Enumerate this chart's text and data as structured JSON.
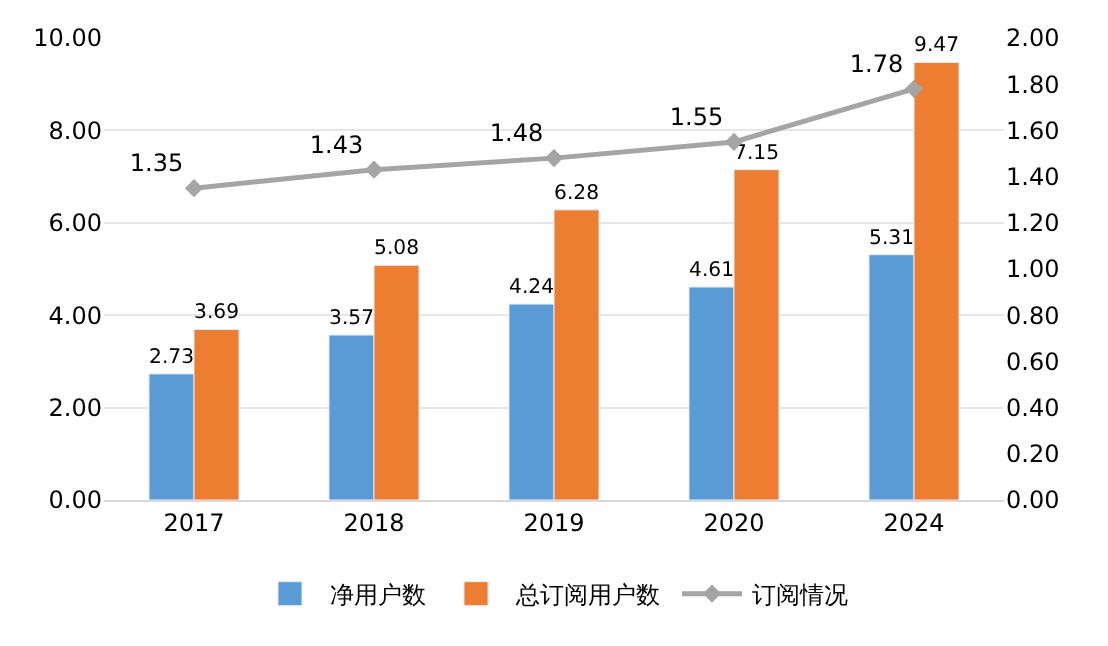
{
  "chart_data": {
    "type": "bar",
    "categories": [
      "2017",
      "2018",
      "2019",
      "2020",
      "2024"
    ],
    "series": [
      {
        "name": "净用户数",
        "color": "#5b9bd5",
        "values": [
          2.73,
          3.57,
          4.24,
          4.61,
          5.31
        ]
      },
      {
        "name": "总订阅用户数",
        "color": "#ed7d31",
        "values": [
          3.69,
          5.08,
          6.28,
          7.15,
          9.47
        ]
      },
      {
        "name": "订阅情况",
        "color": "#a5a5a5",
        "type": "line",
        "axis": "y2",
        "marker": "diamond",
        "values": [
          1.35,
          1.43,
          1.48,
          1.55,
          1.78
        ]
      }
    ],
    "ylim": [
      0,
      10
    ],
    "yticks": [
      {
        "value": 0,
        "label": "0.00"
      },
      {
        "value": 2,
        "label": "2.00"
      },
      {
        "value": 4,
        "label": "4.00"
      },
      {
        "value": 6,
        "label": "6.00"
      },
      {
        "value": 8,
        "label": "8.00"
      },
      {
        "value": 10,
        "label": "10.00"
      }
    ],
    "y2lim": [
      0,
      2
    ],
    "y2ticks": [
      {
        "value": 0,
        "label": "0.00"
      },
      {
        "value": 0.2,
        "label": "0.20"
      },
      {
        "value": 0.4,
        "label": "0.40"
      },
      {
        "value": 0.6,
        "label": "0.60"
      },
      {
        "value": 0.8,
        "label": "0.80"
      },
      {
        "value": 1.0,
        "label": "1.00"
      },
      {
        "value": 1.2,
        "label": "1.20"
      },
      {
        "value": 1.4,
        "label": "1.40"
      },
      {
        "value": 1.6,
        "label": "1.60"
      },
      {
        "value": 1.8,
        "label": "1.80"
      },
      {
        "value": 2.0,
        "label": "2.00"
      }
    ],
    "grid": "y",
    "legend": "bottom",
    "data_labels": true
  }
}
